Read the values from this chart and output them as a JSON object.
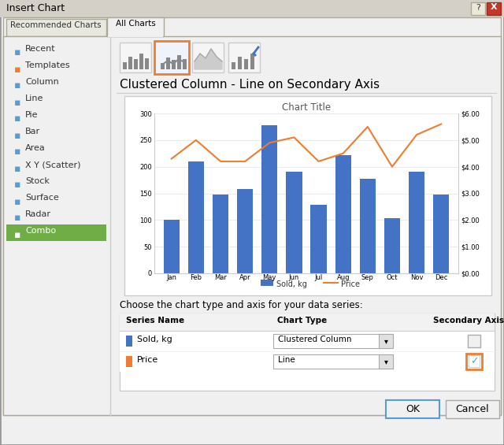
{
  "title": "Insert Chart",
  "tab1": "Recommended Charts",
  "tab2": "All Charts",
  "sidebar_items": [
    "Recent",
    "Templates",
    "Column",
    "Line",
    "Pie",
    "Bar",
    "Area",
    "X Y (Scatter)",
    "Stock",
    "Surface",
    "Radar",
    "Combo"
  ],
  "selected_sidebar": "Combo",
  "chart_subtitle": "Clustered Column - Line on Secondary Axis",
  "chart_title": "Chart Title",
  "months": [
    "Jan",
    "Feb",
    "Mar",
    "Apr",
    "May",
    "Jun",
    "Jul",
    "Aug",
    "Sep",
    "Oct",
    "Nov",
    "Dec"
  ],
  "sold_kg": [
    100,
    210,
    148,
    158,
    278,
    190,
    128,
    222,
    178,
    103,
    190,
    148
  ],
  "price": [
    4.3,
    5.0,
    4.2,
    4.2,
    4.9,
    5.1,
    4.2,
    4.5,
    5.5,
    4.0,
    5.2,
    5.6
  ],
  "bar_color": "#4472C4",
  "line_color": "#ED7D31",
  "bg_dialog": "#ECE9D8",
  "sidebar_selected_bg": "#70AD47",
  "sidebar_selected_fg": "#FFFFFF",
  "orange_border": "#ED7D31",
  "left_ylim": [
    0,
    300
  ],
  "right_ylim": [
    0.0,
    6.0
  ],
  "left_yticks": [
    0,
    50,
    100,
    150,
    200,
    250,
    300
  ],
  "right_yticks": [
    0.0,
    1.0,
    2.0,
    3.0,
    4.0,
    5.0,
    6.0
  ],
  "right_yticklabels": [
    "$0.00",
    "$1.00",
    "$2.00",
    "$3.00",
    "$4.00",
    "$5.00",
    "$6.00"
  ],
  "table_label": "Choose the chart type and axis for your data series:",
  "col_headers": [
    "Series Name",
    "Chart Type",
    "Secondary Axis"
  ],
  "row1_name": "Sold, kg",
  "row2_name": "Price",
  "row1_type": "Clustered Column",
  "row2_type": "Line"
}
